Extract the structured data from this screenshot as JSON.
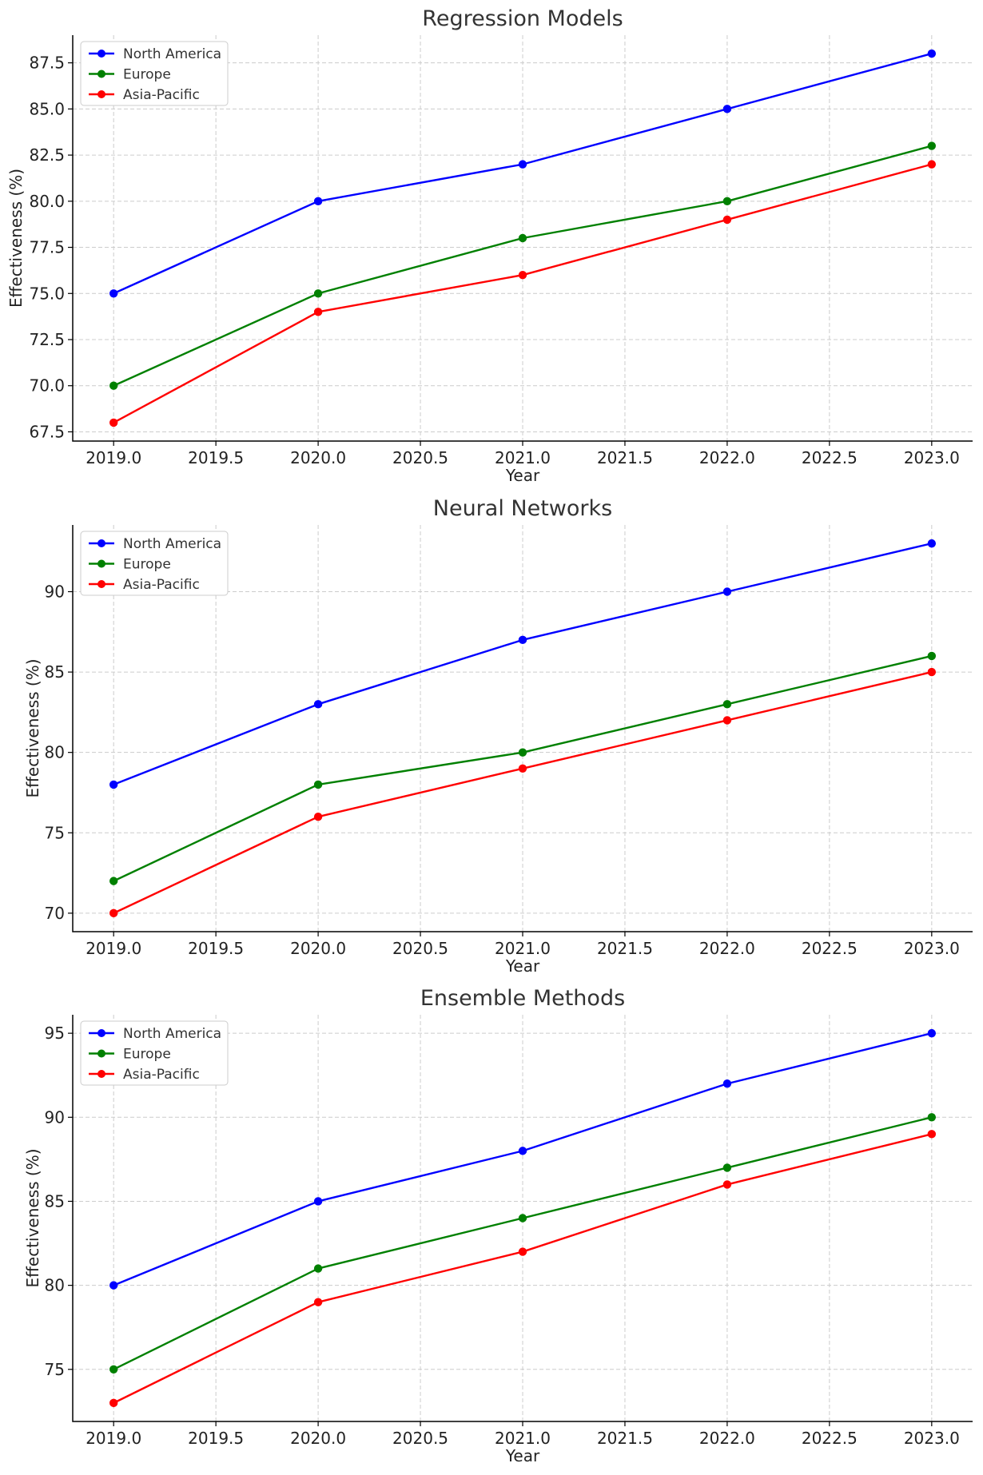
{
  "chart_data": [
    {
      "type": "line",
      "title": "Regression Models",
      "xlabel": "Year",
      "ylabel": "Effectiveness (%)",
      "x": [
        2019,
        2020,
        2021,
        2022,
        2023
      ],
      "xlim": [
        2018.8,
        2023.2
      ],
      "xticks": [
        "2019.0",
        "2019.5",
        "2020.0",
        "2020.5",
        "2021.0",
        "2021.5",
        "2022.0",
        "2022.5",
        "2023.0"
      ],
      "ylim": [
        67,
        89
      ],
      "yticks": [
        "67.5",
        "70.0",
        "72.5",
        "75.0",
        "77.5",
        "80.0",
        "82.5",
        "85.0",
        "87.5"
      ],
      "grid": true,
      "legend_position": "top-left",
      "series": [
        {
          "name": "North America",
          "color": "#0000ff",
          "values": [
            75,
            80,
            82,
            85,
            88
          ]
        },
        {
          "name": "Europe",
          "color": "#008000",
          "values": [
            70,
            75,
            78,
            80,
            83
          ]
        },
        {
          "name": "Asia-Pacific",
          "color": "#ff0000",
          "values": [
            68,
            74,
            76,
            79,
            82
          ]
        }
      ]
    },
    {
      "type": "line",
      "title": "Neural Networks",
      "xlabel": "Year",
      "ylabel": "Effectiveness (%)",
      "x": [
        2019,
        2020,
        2021,
        2022,
        2023
      ],
      "xlim": [
        2018.8,
        2023.2
      ],
      "xticks": [
        "2019.0",
        "2019.5",
        "2020.0",
        "2020.5",
        "2021.0",
        "2021.5",
        "2022.0",
        "2022.5",
        "2023.0"
      ],
      "ylim": [
        68.85,
        94.15
      ],
      "yticks": [
        "70",
        "75",
        "80",
        "85",
        "90"
      ],
      "grid": true,
      "legend_position": "top-left",
      "series": [
        {
          "name": "North America",
          "color": "#0000ff",
          "values": [
            78,
            83,
            87,
            90,
            93
          ]
        },
        {
          "name": "Europe",
          "color": "#008000",
          "values": [
            72,
            78,
            80,
            83,
            86
          ]
        },
        {
          "name": "Asia-Pacific",
          "color": "#ff0000",
          "values": [
            70,
            76,
            79,
            82,
            85
          ]
        }
      ]
    },
    {
      "type": "line",
      "title": "Ensemble Methods",
      "xlabel": "Year",
      "ylabel": "Effectiveness (%)",
      "x": [
        2019,
        2020,
        2021,
        2022,
        2023
      ],
      "xlim": [
        2018.8,
        2023.2
      ],
      "xticks": [
        "2019.0",
        "2019.5",
        "2020.0",
        "2020.5",
        "2021.0",
        "2021.5",
        "2022.0",
        "2022.5",
        "2023.0"
      ],
      "ylim": [
        71.9,
        96.1
      ],
      "yticks": [
        "75",
        "80",
        "85",
        "90",
        "95"
      ],
      "grid": true,
      "legend_position": "top-left",
      "series": [
        {
          "name": "North America",
          "color": "#0000ff",
          "values": [
            80,
            85,
            88,
            92,
            95
          ]
        },
        {
          "name": "Europe",
          "color": "#008000",
          "values": [
            75,
            81,
            84,
            87,
            90
          ]
        },
        {
          "name": "Asia-Pacific",
          "color": "#ff0000",
          "values": [
            73,
            79,
            82,
            86,
            89
          ]
        }
      ]
    }
  ]
}
